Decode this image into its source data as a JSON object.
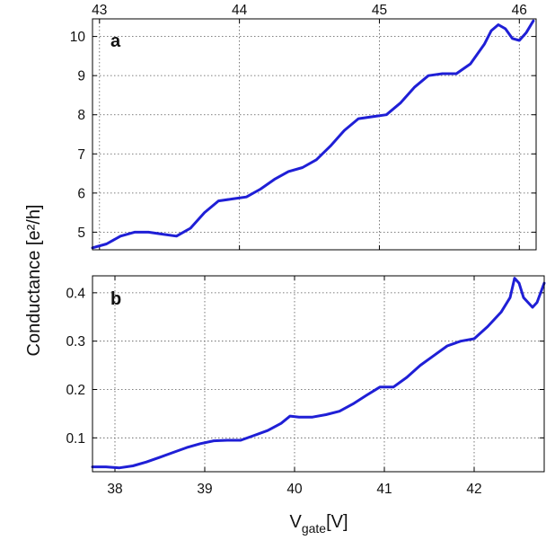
{
  "colors": {
    "series": "#1f1fd6",
    "axes": "#000000",
    "grid": "#555555"
  },
  "ylabel": "Conductance [e²/h]",
  "xlabel_main": "V",
  "xlabel_sub": "gate",
  "xlabel_unit": "[V]",
  "chart_data": [
    {
      "type": "line",
      "panel": "a",
      "grid": true,
      "x_axis": "top",
      "xlim": [
        42.95,
        46.12
      ],
      "ylim": [
        4.55,
        10.45
      ],
      "xticks": [
        43,
        44,
        45,
        46
      ],
      "yticks": [
        5,
        6,
        7,
        8,
        9,
        10
      ],
      "series": [
        {
          "x": [
            42.95,
            43.05,
            43.15,
            43.25,
            43.35,
            43.45,
            43.55,
            43.65,
            43.75,
            43.85,
            43.95,
            44.05,
            44.15,
            44.25,
            44.35,
            44.45,
            44.55,
            44.65,
            44.75,
            44.85,
            44.95,
            45.05,
            45.15,
            45.25,
            45.35,
            45.45,
            45.55,
            45.65,
            45.75,
            45.8,
            45.85,
            45.9,
            45.95,
            46.0,
            46.05,
            46.1
          ],
          "y": [
            4.6,
            4.7,
            4.9,
            5.0,
            5.0,
            4.95,
            4.9,
            5.1,
            5.5,
            5.8,
            5.85,
            5.9,
            6.1,
            6.35,
            6.55,
            6.65,
            6.85,
            7.2,
            7.6,
            7.9,
            7.95,
            8.0,
            8.3,
            8.7,
            9.0,
            9.05,
            9.05,
            9.3,
            9.8,
            10.15,
            10.3,
            10.2,
            9.95,
            9.9,
            10.1,
            10.4
          ]
        }
      ]
    },
    {
      "type": "line",
      "panel": "b",
      "grid": true,
      "x_axis": "bottom",
      "xlim": [
        37.75,
        42.78
      ],
      "ylim": [
        0.03,
        0.435
      ],
      "xticks": [
        38,
        39,
        40,
        41,
        42
      ],
      "yticks": [
        0.1,
        0.2,
        0.3,
        0.4
      ],
      "series": [
        {
          "x": [
            37.75,
            37.9,
            38.05,
            38.2,
            38.35,
            38.5,
            38.65,
            38.8,
            38.95,
            39.1,
            39.25,
            39.4,
            39.55,
            39.7,
            39.85,
            39.95,
            40.05,
            40.2,
            40.35,
            40.5,
            40.65,
            40.8,
            40.95,
            41.1,
            41.25,
            41.4,
            41.55,
            41.7,
            41.85,
            42.0,
            42.15,
            42.3,
            42.4,
            42.45,
            42.5,
            42.55,
            42.6,
            42.65,
            42.7,
            42.78
          ],
          "y": [
            0.04,
            0.04,
            0.038,
            0.042,
            0.05,
            0.06,
            0.07,
            0.08,
            0.088,
            0.094,
            0.095,
            0.095,
            0.105,
            0.115,
            0.13,
            0.145,
            0.143,
            0.143,
            0.148,
            0.155,
            0.17,
            0.188,
            0.205,
            0.205,
            0.225,
            0.25,
            0.27,
            0.29,
            0.3,
            0.305,
            0.33,
            0.36,
            0.39,
            0.43,
            0.42,
            0.39,
            0.38,
            0.37,
            0.38,
            0.42
          ]
        }
      ]
    }
  ]
}
